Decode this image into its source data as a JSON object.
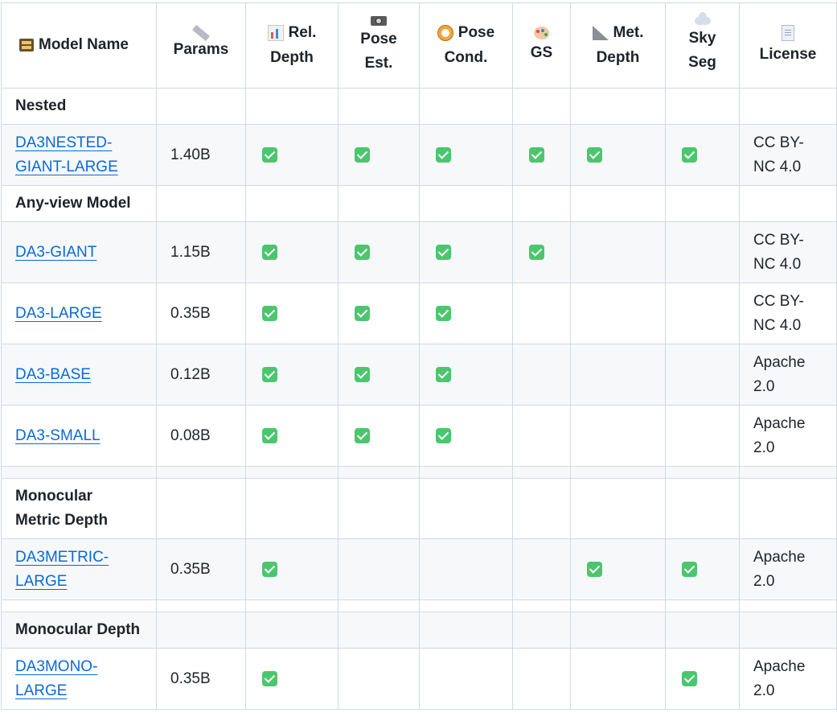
{
  "headers": {
    "model_name": "Model Name",
    "params": "Params",
    "rel_depth_1": "Rel.",
    "rel_depth_2": "Depth",
    "pose_est_1": "Pose",
    "pose_est_2": "Est.",
    "pose_cond_1": "Pose",
    "pose_cond_2": "Cond.",
    "gs": "GS",
    "met_depth_1": "Met.",
    "met_depth_2": "Depth",
    "sky_seg_1": "Sky",
    "sky_seg_2": "Seg",
    "license": "License"
  },
  "icons": {
    "model_name": "card-file-box-icon",
    "params": "straight-ruler-icon",
    "rel_depth": "bar-chart-icon",
    "pose_est": "camera-icon",
    "pose_cond": "compass-icon",
    "gs": "palette-icon",
    "met_depth": "triangular-ruler-icon",
    "sky_seg": "cloud-icon",
    "license": "page-icon"
  },
  "sections": {
    "nested": "Nested",
    "any_view": "Any-view Model",
    "mono_metric_1": "Monocular",
    "mono_metric_2": "Metric Depth",
    "mono_depth": "Monocular Depth"
  },
  "rows": {
    "nested_giant": {
      "name_1": "DA3NESTED-",
      "name_2": "GIANT-LARGE",
      "params": "1.40B",
      "license_1": "CC BY-",
      "license_2": "NC 4.0"
    },
    "giant": {
      "name": "DA3-GIANT",
      "params": "1.15B",
      "license_1": "CC BY-",
      "license_2": "NC 4.0"
    },
    "large": {
      "name": "DA3-LARGE",
      "params": "0.35B",
      "license_1": "CC BY-",
      "license_2": "NC 4.0"
    },
    "base": {
      "name": "DA3-BASE",
      "params": "0.12B",
      "license_1": "Apache",
      "license_2": "2.0"
    },
    "small": {
      "name": "DA3-SMALL",
      "params": "0.08B",
      "license_1": "Apache",
      "license_2": "2.0"
    },
    "metric_large": {
      "name_1": "DA3METRIC-",
      "name_2": "LARGE",
      "params": "0.35B",
      "license_1": "Apache",
      "license_2": "2.0"
    },
    "mono_large": {
      "name_1": "DA3MONO-",
      "name_2": "LARGE",
      "params": "0.35B",
      "license_1": "Apache",
      "license_2": "2.0"
    }
  },
  "capabilities": {
    "nested_giant": [
      "rel_depth",
      "pose_est",
      "pose_cond",
      "gs",
      "met_depth",
      "sky_seg"
    ],
    "giant": [
      "rel_depth",
      "pose_est",
      "pose_cond",
      "gs"
    ],
    "large": [
      "rel_depth",
      "pose_est",
      "pose_cond"
    ],
    "base": [
      "rel_depth",
      "pose_est",
      "pose_cond"
    ],
    "small": [
      "rel_depth",
      "pose_est",
      "pose_cond"
    ],
    "metric_large": [
      "rel_depth",
      "met_depth",
      "sky_seg"
    ],
    "mono_large": [
      "rel_depth",
      "sky_seg"
    ]
  },
  "colors": {
    "link": "#0969da",
    "check": "#4cc66e",
    "border": "#d1d9e0",
    "row_shade": "#f6f8fa"
  }
}
